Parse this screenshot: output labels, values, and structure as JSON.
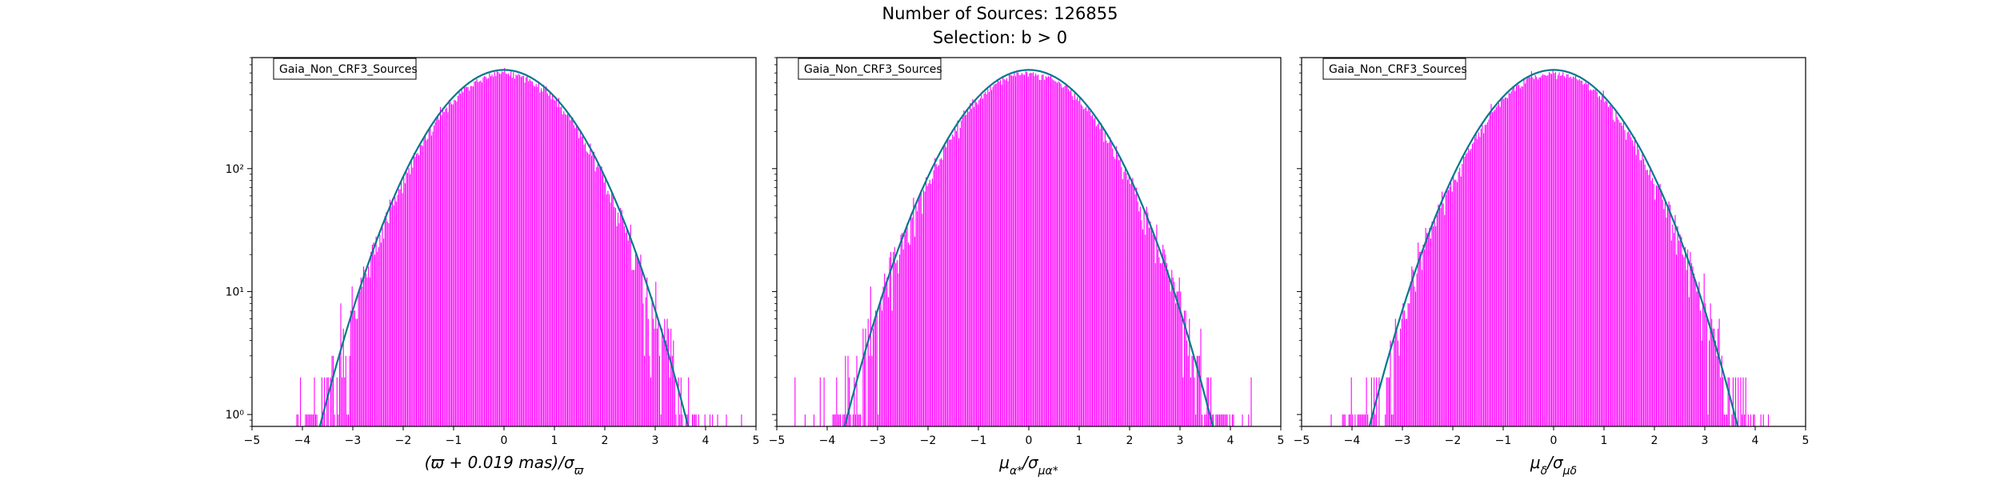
{
  "figure": {
    "title_line1": "Number of Sources: 126855",
    "title_line2": "Selection: b > 0"
  },
  "colors": {
    "histogram": "#ff00ff",
    "gaussian": "#00798c",
    "frame": "#000000",
    "background": "#ffffff"
  },
  "chart_data": [
    {
      "type": "histogram+line",
      "panel": 1,
      "legend": "Gaia_Non_CRF3_Sources",
      "xlabel": "(ϖ + 0.019 mas)/σϖ",
      "xlim": [
        -5,
        5
      ],
      "ylim": [
        0.8,
        800
      ],
      "yscale": "log",
      "xticks": [
        -5,
        -4,
        -3,
        -2,
        -1,
        0,
        1,
        2,
        3,
        4,
        5
      ],
      "yticks": [
        {
          "value": 1,
          "label": "10⁰"
        },
        {
          "value": 10,
          "label": "10¹"
        },
        {
          "value": 100,
          "label": "10²"
        }
      ],
      "gaussian_peak": 635,
      "histogram_peak": 595,
      "legend_position": "upper-left"
    },
    {
      "type": "histogram+line",
      "panel": 2,
      "legend": "Gaia_Non_CRF3_Sources",
      "xlabel": "μα*/σμα*",
      "xlim": [
        -5,
        5
      ],
      "ylim": [
        0.8,
        800
      ],
      "yscale": "log",
      "xticks": [
        -5,
        -4,
        -3,
        -2,
        -1,
        0,
        1,
        2,
        3,
        4,
        5
      ],
      "yticks": [
        {
          "value": 1,
          "label": ""
        },
        {
          "value": 10,
          "label": ""
        },
        {
          "value": 100,
          "label": ""
        }
      ],
      "gaussian_peak": 635,
      "histogram_peak": 595,
      "legend_position": "upper-left"
    },
    {
      "type": "histogram+line",
      "panel": 3,
      "legend": "Gaia_Non_CRF3_Sources",
      "xlabel": "μδ/σμδ",
      "xlim": [
        -5,
        5
      ],
      "ylim": [
        0.8,
        800
      ],
      "yscale": "log",
      "xticks": [
        -5,
        -4,
        -3,
        -2,
        -1,
        0,
        1,
        2,
        3,
        4,
        5
      ],
      "yticks": [
        {
          "value": 1,
          "label": ""
        },
        {
          "value": 10,
          "label": ""
        },
        {
          "value": 100,
          "label": ""
        }
      ],
      "gaussian_peak": 635,
      "histogram_peak": 595,
      "legend_position": "upper-left"
    }
  ]
}
